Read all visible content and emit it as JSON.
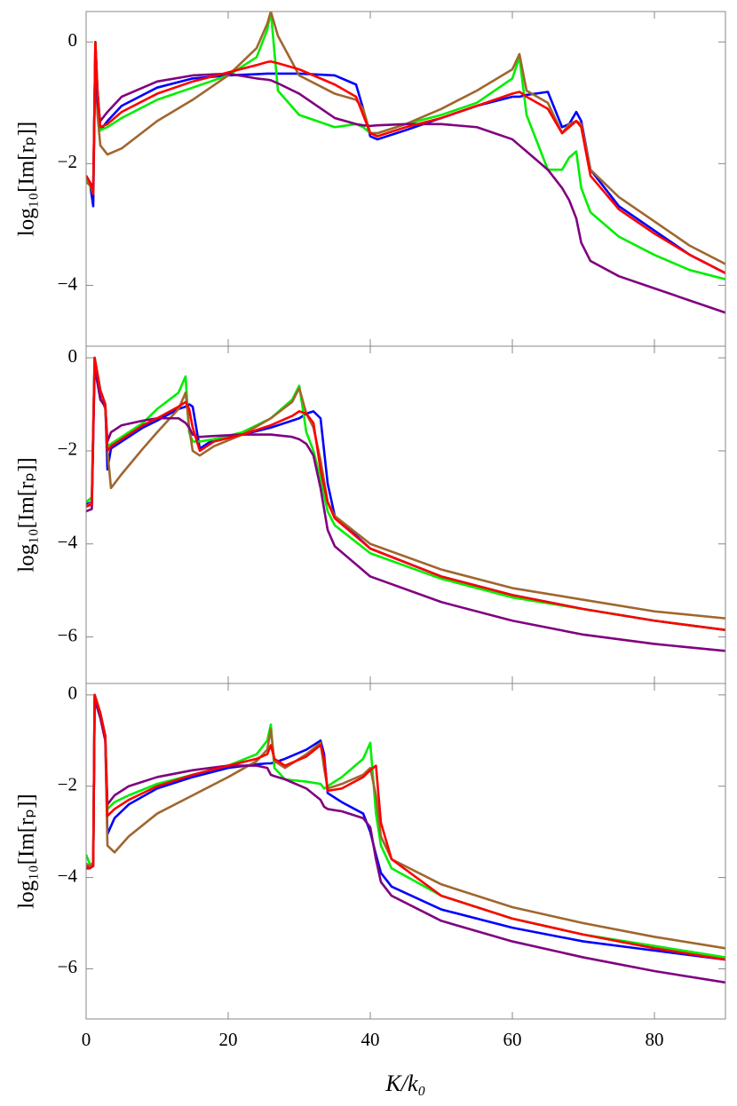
{
  "chart_data": [
    {
      "type": "line",
      "ylabel": "log₁₀[Im[rₚ]]",
      "xlim": [
        0,
        90
      ],
      "xticks": [
        0,
        20,
        40,
        60,
        80
      ],
      "ylim": [
        -5,
        0.5
      ],
      "yticks": [
        {
          "value": -4,
          "label": "−4"
        },
        {
          "value": -2,
          "label": "−2"
        },
        0
      ],
      "x": [
        0,
        0.5,
        1,
        1.3,
        1.6,
        2,
        3,
        5,
        10,
        15,
        20,
        24,
        25.5,
        26,
        27,
        30,
        35,
        38,
        39,
        40,
        41,
        45,
        50,
        55,
        60,
        61,
        62,
        65,
        67,
        68,
        69,
        69.7,
        71,
        75,
        80,
        85,
        90
      ],
      "series": [
        {
          "color": "#0000ff",
          "values": [
            -2.2,
            -2.3,
            -2.7,
            0,
            -0.8,
            -1.45,
            -1.3,
            -1.05,
            -0.75,
            -0.6,
            -0.55,
            -0.53,
            -0.52,
            -0.52,
            -0.52,
            -0.52,
            -0.55,
            -0.7,
            -1.1,
            -1.55,
            -1.6,
            -1.45,
            -1.25,
            -1.05,
            -0.9,
            -0.9,
            -0.87,
            -0.82,
            -1.4,
            -1.35,
            -1.15,
            -1.3,
            -2.1,
            -2.7,
            -3.1,
            -3.5,
            -3.8
          ]
        },
        {
          "color": "#00ee00",
          "values": [
            -2.25,
            -2.35,
            -2.5,
            0,
            -0.8,
            -1.45,
            -1.4,
            -1.25,
            -0.95,
            -0.75,
            -0.55,
            -0.25,
            0.2,
            0.5,
            -0.8,
            -1.2,
            -1.4,
            -1.35,
            -1.4,
            -1.5,
            -1.5,
            -1.35,
            -1.2,
            -1.0,
            -0.6,
            -0.25,
            -1.2,
            -2.1,
            -2.1,
            -1.9,
            -1.8,
            -2.4,
            -2.8,
            -3.2,
            -3.5,
            -3.75,
            -3.9
          ]
        },
        {
          "color": "#a0662e",
          "values": [
            -2.3,
            -2.35,
            -2.4,
            -0.2,
            -1.2,
            -1.7,
            -1.85,
            -1.75,
            -1.3,
            -0.95,
            -0.55,
            -0.1,
            0.3,
            0.5,
            0.1,
            -0.55,
            -0.85,
            -0.95,
            -1.1,
            -1.5,
            -1.5,
            -1.35,
            -1.1,
            -0.8,
            -0.45,
            -0.2,
            -0.8,
            -1.0,
            -1.5,
            -1.35,
            -1.3,
            -1.35,
            -2.1,
            -2.55,
            -2.95,
            -3.35,
            -3.65
          ]
        },
        {
          "color": "#800080",
          "values": [
            -2.2,
            -2.3,
            -2.4,
            -0.1,
            -1.0,
            -1.3,
            -1.15,
            -0.9,
            -0.65,
            -0.55,
            -0.52,
            -0.6,
            -0.62,
            -0.63,
            -0.68,
            -0.85,
            -1.25,
            -1.35,
            -1.37,
            -1.38,
            -1.37,
            -1.35,
            -1.35,
            -1.4,
            -1.6,
            -1.7,
            -1.8,
            -2.1,
            -2.4,
            -2.6,
            -2.9,
            -3.3,
            -3.6,
            -3.85,
            -4.05,
            -4.25,
            -4.45
          ]
        },
        {
          "color": "#ff0000",
          "values": [
            -2.2,
            -2.3,
            -2.5,
            0,
            -0.8,
            -1.4,
            -1.35,
            -1.15,
            -0.85,
            -0.65,
            -0.5,
            -0.38,
            -0.33,
            -0.32,
            -0.35,
            -0.45,
            -0.7,
            -0.9,
            -1.2,
            -1.5,
            -1.55,
            -1.4,
            -1.25,
            -1.05,
            -0.85,
            -0.82,
            -0.9,
            -1.1,
            -1.5,
            -1.4,
            -1.3,
            -1.4,
            -2.2,
            -2.75,
            -3.15,
            -3.5,
            -3.8
          ]
        }
      ]
    },
    {
      "type": "line",
      "ylabel": "log₁₀[Im[rₚ]]",
      "xlim": [
        0,
        90
      ],
      "xticks": [
        0,
        20,
        40,
        60,
        80
      ],
      "ylim": [
        -7,
        0.25
      ],
      "yticks": [
        {
          "value": -6,
          "label": "−6"
        },
        {
          "value": -4,
          "label": "−4"
        },
        {
          "value": -2,
          "label": "−2"
        },
        0
      ],
      "x": [
        0,
        0.8,
        1.2,
        2,
        2.7,
        3,
        3.5,
        5,
        8,
        10,
        13,
        14,
        14.5,
        15,
        16,
        18,
        22,
        26,
        29,
        30,
        31,
        32,
        33,
        34,
        35,
        40,
        50,
        60,
        70,
        80,
        90
      ],
      "series": [
        {
          "color": "#0000ff",
          "values": [
            -3.15,
            -3.1,
            0,
            -0.7,
            -1.0,
            -2.4,
            -1.95,
            -1.8,
            -1.5,
            -1.35,
            -1.1,
            -1.05,
            -1.0,
            -1.05,
            -1.95,
            -1.75,
            -1.65,
            -1.5,
            -1.35,
            -1.3,
            -1.2,
            -1.15,
            -1.3,
            -2.7,
            -3.4,
            -4.1,
            -4.7,
            -5.1,
            -5.4,
            -5.65,
            -5.85
          ]
        },
        {
          "color": "#00ee00",
          "values": [
            -3.1,
            -3.0,
            0,
            -0.7,
            -1.0,
            -1.9,
            -1.85,
            -1.7,
            -1.4,
            -1.1,
            -0.75,
            -0.4,
            -1.6,
            -1.8,
            -1.8,
            -1.75,
            -1.6,
            -1.3,
            -0.9,
            -0.6,
            -1.6,
            -2.0,
            -2.6,
            -3.3,
            -3.6,
            -4.2,
            -4.75,
            -5.15,
            -5.4,
            -5.65,
            -5.85
          ]
        },
        {
          "color": "#a0662e",
          "values": [
            -3.2,
            -3.1,
            -0.1,
            -0.8,
            -1.1,
            -2.0,
            -2.8,
            -2.5,
            -1.95,
            -1.6,
            -1.1,
            -0.75,
            -1.5,
            -2.0,
            -2.1,
            -1.9,
            -1.65,
            -1.3,
            -0.95,
            -0.65,
            -1.2,
            -1.5,
            -2.2,
            -3.1,
            -3.4,
            -4.0,
            -4.55,
            -4.95,
            -5.2,
            -5.45,
            -5.6
          ]
        },
        {
          "color": "#800080",
          "values": [
            -3.3,
            -3.25,
            -0.2,
            -0.9,
            -1.05,
            -1.8,
            -1.6,
            -1.45,
            -1.35,
            -1.3,
            -1.3,
            -1.4,
            -1.5,
            -1.65,
            -1.7,
            -1.68,
            -1.65,
            -1.65,
            -1.7,
            -1.75,
            -1.85,
            -2.1,
            -2.8,
            -3.7,
            -4.05,
            -4.7,
            -5.25,
            -5.65,
            -5.95,
            -6.15,
            -6.3
          ]
        },
        {
          "color": "#ff0000",
          "values": [
            -3.2,
            -3.15,
            0,
            -0.7,
            -1.0,
            -2.0,
            -1.9,
            -1.75,
            -1.45,
            -1.3,
            -1.05,
            -0.95,
            -1.1,
            -1.5,
            -2.0,
            -1.8,
            -1.65,
            -1.45,
            -1.25,
            -1.15,
            -1.2,
            -1.4,
            -2.4,
            -3.1,
            -3.45,
            -4.1,
            -4.7,
            -5.1,
            -5.4,
            -5.65,
            -5.85
          ]
        }
      ]
    },
    {
      "type": "line",
      "ylabel": "log₁₀[Im[rₚ]]",
      "xlabel": "K/k₀",
      "xlim": [
        0,
        90
      ],
      "xticks": [
        0,
        20,
        40,
        60,
        80
      ],
      "ylim": [
        -7.1,
        0.25
      ],
      "yticks": [
        {
          "value": -6,
          "label": "−6"
        },
        {
          "value": -4,
          "label": "−4"
        },
        {
          "value": -2,
          "label": "−2"
        },
        0
      ],
      "x": [
        0,
        0.5,
        1,
        1.2,
        2,
        2.7,
        3,
        4,
        6,
        10,
        15,
        20,
        24,
        25.5,
        26,
        26.5,
        28,
        31,
        33,
        33.5,
        34,
        36,
        39,
        40,
        40.8,
        41.5,
        43,
        50,
        60,
        70,
        80,
        90
      ],
      "series": [
        {
          "color": "#0000ff",
          "values": [
            -3.7,
            -3.75,
            -3.7,
            0,
            -0.4,
            -0.9,
            -3.05,
            -2.7,
            -2.4,
            -2.05,
            -1.8,
            -1.6,
            -1.52,
            -1.5,
            -1.5,
            -1.48,
            -1.4,
            -1.2,
            -1.0,
            -1.3,
            -2.15,
            -2.35,
            -2.6,
            -3.0,
            -3.5,
            -3.9,
            -4.2,
            -4.7,
            -5.1,
            -5.4,
            -5.6,
            -5.8
          ]
        },
        {
          "color": "#00ee00",
          "values": [
            -3.5,
            -3.7,
            -3.7,
            0,
            -0.4,
            -0.9,
            -2.5,
            -2.35,
            -2.2,
            -1.95,
            -1.75,
            -1.55,
            -1.3,
            -1.0,
            -0.65,
            -1.6,
            -1.85,
            -1.9,
            -1.95,
            -2.05,
            -2.0,
            -1.8,
            -1.4,
            -1.05,
            -2.6,
            -3.3,
            -3.8,
            -4.4,
            -4.9,
            -5.25,
            -5.5,
            -5.75
          ]
        },
        {
          "color": "#a0662e",
          "values": [
            -3.7,
            -3.75,
            -3.7,
            -0.1,
            -0.5,
            -1.0,
            -3.3,
            -3.45,
            -3.1,
            -2.6,
            -2.2,
            -1.8,
            -1.45,
            -1.2,
            -0.75,
            -1.45,
            -1.6,
            -1.3,
            -1.05,
            -1.6,
            -2.05,
            -1.95,
            -1.75,
            -1.6,
            -2.2,
            -3.1,
            -3.6,
            -4.15,
            -4.65,
            -5.0,
            -5.3,
            -5.55
          ]
        },
        {
          "color": "#800080",
          "values": [
            -3.8,
            -3.8,
            -3.75,
            -0.1,
            -0.5,
            -1.0,
            -2.4,
            -2.2,
            -2.0,
            -1.8,
            -1.65,
            -1.55,
            -1.55,
            -1.6,
            -1.75,
            -1.78,
            -1.85,
            -2.05,
            -2.3,
            -2.45,
            -2.5,
            -2.55,
            -2.7,
            -2.9,
            -3.6,
            -4.1,
            -4.4,
            -4.95,
            -5.4,
            -5.75,
            -6.05,
            -6.3
          ]
        },
        {
          "color": "#ff0000",
          "values": [
            -3.75,
            -3.8,
            -3.75,
            0,
            -0.4,
            -0.9,
            -2.65,
            -2.5,
            -2.3,
            -2.0,
            -1.75,
            -1.55,
            -1.4,
            -1.3,
            -1.1,
            -1.4,
            -1.55,
            -1.35,
            -1.1,
            -1.4,
            -2.1,
            -2.05,
            -1.8,
            -1.65,
            -1.55,
            -2.8,
            -3.6,
            -4.4,
            -4.9,
            -5.25,
            -5.55,
            -5.8
          ]
        }
      ]
    }
  ]
}
